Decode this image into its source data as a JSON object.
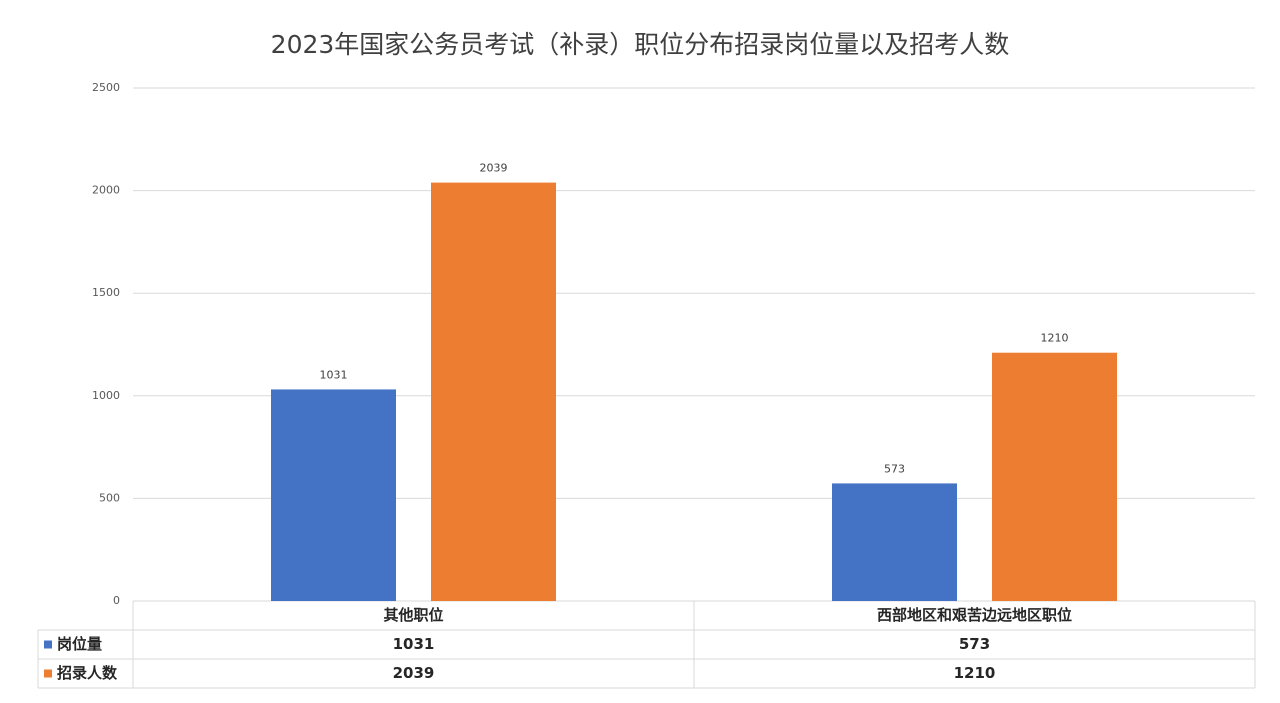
{
  "chart_data": {
    "type": "bar",
    "title": "2023年国家公务员考试（补录）职位分布招录岗位量以及招考人数",
    "categories": [
      "其他职位",
      "西部地区和艰苦边远地区职位"
    ],
    "series": [
      {
        "name": "岗位量",
        "color": "#4472c4",
        "values": [
          1031,
          573
        ]
      },
      {
        "name": "招录人数",
        "color": "#ed7d31",
        "values": [
          2039,
          1210
        ]
      }
    ],
    "ylim": [
      0,
      2500
    ],
    "yticks": [
      0,
      500,
      1000,
      1500,
      2000,
      2500
    ],
    "grid": true,
    "data_table": true
  }
}
